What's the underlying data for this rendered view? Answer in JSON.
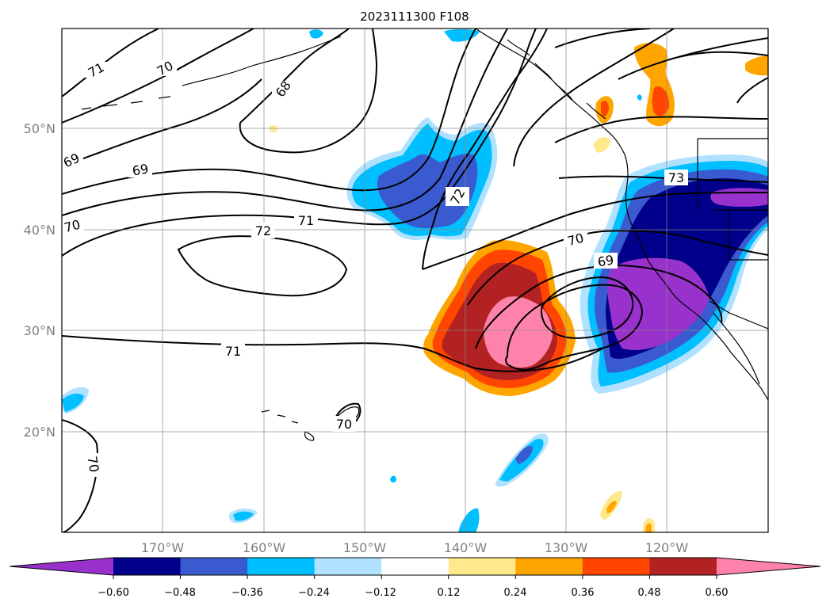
{
  "map": {
    "title": "2023111300 F108",
    "lat_labels": [
      "50°N",
      "40°N",
      "30°N",
      "20°N"
    ],
    "lon_labels": [
      "170°W",
      "160°W",
      "150°W",
      "140°W",
      "130°W",
      "120°W"
    ],
    "contour_labels": [
      "71",
      "70",
      "68",
      "69",
      "69",
      "70",
      "72",
      "71",
      "72",
      "73",
      "70",
      "69",
      "71",
      "70",
      "70"
    ],
    "grid": true
  },
  "colorbar": {
    "tick_labels": [
      "−0.60",
      "−0.48",
      "−0.36",
      "−0.24",
      "−0.12",
      "0.12",
      "0.24",
      "0.36",
      "0.48",
      "0.60"
    ],
    "colors": [
      "#9932cc",
      "#00008b",
      "#3a5bd0",
      "#00bfff",
      "#b0e2ff",
      "#ffffff",
      "#ffe98c",
      "#ffa500",
      "#ff4500",
      "#b22222",
      "#ff82ab"
    ]
  }
}
